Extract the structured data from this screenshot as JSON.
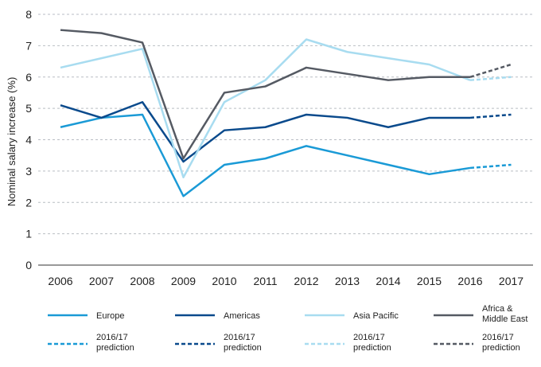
{
  "chart_data": {
    "type": "line",
    "title": "",
    "xlabel": "",
    "ylabel": "Nominal salary increase (%)",
    "ylim": [
      0,
      8
    ],
    "yticks": [
      0,
      1,
      2,
      3,
      4,
      5,
      6,
      7,
      8
    ],
    "grid": "horizontal dashed",
    "legend_position": "bottom",
    "x": [
      "2006",
      "2007",
      "2008",
      "2009",
      "2010",
      "2011",
      "2012",
      "2013",
      "2014",
      "2015",
      "2016",
      "2017"
    ],
    "series": [
      {
        "name": "Europe",
        "color": "#1a9ad6",
        "values": [
          4.4,
          4.7,
          4.8,
          2.2,
          3.2,
          3.4,
          3.8,
          3.5,
          3.2,
          2.9,
          3.1,
          null
        ],
        "prediction": {
          "name": "2016/17 prediction",
          "x": [
            "2016",
            "2017"
          ],
          "values": [
            3.1,
            3.2
          ]
        }
      },
      {
        "name": "Americas",
        "color": "#0a4a8c",
        "values": [
          5.1,
          4.7,
          5.2,
          3.3,
          4.3,
          4.4,
          4.8,
          4.7,
          4.4,
          4.7,
          4.7,
          null
        ],
        "prediction": {
          "name": "2016/17 prediction",
          "x": [
            "2016",
            "2017"
          ],
          "values": [
            4.7,
            4.8
          ]
        }
      },
      {
        "name": "Asia Pacific",
        "color": "#a8dcf0",
        "values": [
          6.3,
          6.6,
          6.9,
          2.8,
          5.2,
          5.9,
          7.2,
          6.8,
          6.6,
          6.4,
          5.9,
          null
        ],
        "prediction": {
          "name": "2016/17 prediction",
          "x": [
            "2016",
            "2017"
          ],
          "values": [
            5.9,
            6.0
          ]
        }
      },
      {
        "name": "Africa & Middle East",
        "name_lines": [
          "Africa &",
          "Middle East"
        ],
        "color": "#555a63",
        "values": [
          7.5,
          7.4,
          7.1,
          3.4,
          5.5,
          5.7,
          6.3,
          6.1,
          5.9,
          6.0,
          6.0,
          null
        ],
        "prediction": {
          "name": "2016/17 prediction",
          "x": [
            "2016",
            "2017"
          ],
          "values": [
            6.0,
            6.4
          ]
        }
      }
    ],
    "prediction_label_lines": [
      "2016/17",
      "prediction"
    ]
  }
}
